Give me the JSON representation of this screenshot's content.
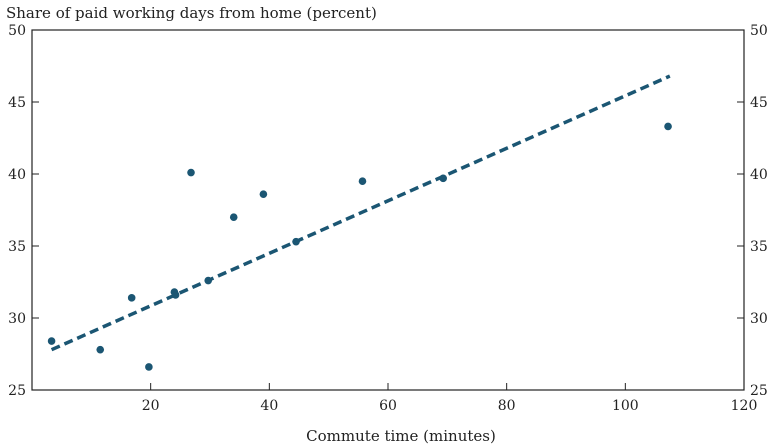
{
  "chart_data": {
    "type": "scatter",
    "title": "Share of paid working days from home (percent)",
    "xlabel": "Commute time (minutes)",
    "ylabel": "",
    "xlim": [
      0,
      120
    ],
    "ylim": [
      25,
      50
    ],
    "x_ticks": [
      20,
      40,
      60,
      80,
      100,
      120
    ],
    "y_ticks": [
      25,
      30,
      35,
      40,
      45,
      50
    ],
    "grid": false,
    "y_axis_labels": "both sides",
    "point_color": "#1b5673",
    "trend_color": "#1b5673",
    "points": [
      {
        "x": 3.3,
        "y": 28.4
      },
      {
        "x": 11.5,
        "y": 27.8
      },
      {
        "x": 16.8,
        "y": 31.4
      },
      {
        "x": 19.7,
        "y": 26.6
      },
      {
        "x": 24.0,
        "y": 31.8
      },
      {
        "x": 24.2,
        "y": 31.6
      },
      {
        "x": 26.8,
        "y": 40.1
      },
      {
        "x": 29.7,
        "y": 32.6
      },
      {
        "x": 34.0,
        "y": 37.0
      },
      {
        "x": 39.0,
        "y": 38.6
      },
      {
        "x": 44.5,
        "y": 35.3
      },
      {
        "x": 55.7,
        "y": 39.5
      },
      {
        "x": 69.3,
        "y": 39.7
      },
      {
        "x": 107.2,
        "y": 43.3
      }
    ],
    "trend_line": {
      "x": [
        3.3,
        107.5
      ],
      "y": [
        27.8,
        46.8
      ],
      "style": "dashed"
    }
  }
}
